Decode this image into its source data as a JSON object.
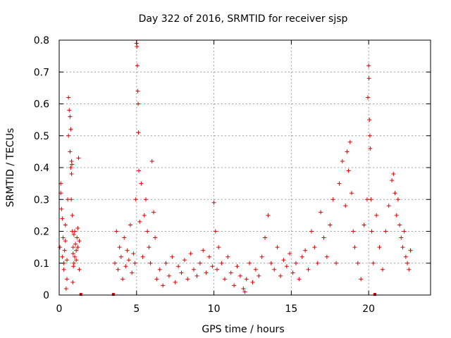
{
  "chart_data": {
    "type": "scatter",
    "title": "Day 322 of 2016, SRMTID for receiver sjsp",
    "xlabel": "GPS time / hours",
    "ylabel": "SRMTID / TECUs",
    "xlim": [
      0,
      24
    ],
    "ylim": [
      0,
      0.8
    ],
    "xticks": [
      0,
      5,
      10,
      15,
      20
    ],
    "xtick_labels": [
      "0",
      "5",
      "10",
      "15",
      "20"
    ],
    "yticks": [
      0,
      0.1,
      0.2,
      0.3,
      0.4,
      0.5,
      0.6,
      0.7,
      0.8
    ],
    "ytick_labels": [
      "0",
      "0.1",
      "0.2",
      "0.3",
      "0.4",
      "0.5",
      "0.6",
      "0.7",
      "0.8"
    ],
    "grid": true,
    "marker": "plus",
    "marker_color": "#e00000",
    "series": [
      {
        "name": "SRMTID",
        "x": [
          0.05,
          0.1,
          0.15,
          0.2,
          0.25,
          0.3,
          0.35,
          0.4,
          0.45,
          0.5,
          0.55,
          0.6,
          0.65,
          0.7,
          0.75,
          0.8,
          0.85,
          0.9,
          0.95,
          1.0,
          1.05,
          1.1,
          1.15,
          1.2,
          1.25,
          1.3,
          0.1,
          0.2,
          0.3,
          0.4,
          0.5,
          0.6,
          0.7,
          0.75,
          0.78,
          0.8,
          0.82,
          0.85,
          0.88,
          0.9,
          0.92,
          0.95,
          1.0,
          1.1,
          1.2,
          1.3,
          3.6,
          3.7,
          3.8,
          3.9,
          4.0,
          4.1,
          4.2,
          4.3,
          4.4,
          4.5,
          4.6,
          4.7,
          4.8,
          4.9,
          4.95,
          5.0,
          5.02,
          5.05,
          5.08,
          5.1,
          5.12,
          5.15,
          5.2,
          5.3,
          5.4,
          5.5,
          5.6,
          5.7,
          5.8,
          5.9,
          6.0,
          6.1,
          6.2,
          6.3,
          6.5,
          6.7,
          6.9,
          7.1,
          7.3,
          7.5,
          7.7,
          7.9,
          8.1,
          8.3,
          8.5,
          8.7,
          8.9,
          9.1,
          9.3,
          9.5,
          9.7,
          9.9,
          10.0,
          10.1,
          10.2,
          10.3,
          10.5,
          10.7,
          10.9,
          11.1,
          11.3,
          11.5,
          11.7,
          11.9,
          12.0,
          12.1,
          12.3,
          12.5,
          12.7,
          12.9,
          13.1,
          13.3,
          13.5,
          13.7,
          13.9,
          14.1,
          14.3,
          14.5,
          14.7,
          14.9,
          15.1,
          15.3,
          15.5,
          15.7,
          15.9,
          16.1,
          16.3,
          16.5,
          16.7,
          16.9,
          17.1,
          17.3,
          17.5,
          17.7,
          17.9,
          18.1,
          18.3,
          18.5,
          18.6,
          18.7,
          18.8,
          18.9,
          19.0,
          19.1,
          19.3,
          19.5,
          19.7,
          19.9,
          19.95,
          20.0,
          20.02,
          20.05,
          20.08,
          20.1,
          20.15,
          20.2,
          20.3,
          20.5,
          20.7,
          20.9,
          21.1,
          21.3,
          21.5,
          21.6,
          21.7,
          21.8,
          21.9,
          22.0,
          22.1,
          22.2,
          22.3,
          22.4,
          22.5,
          22.6,
          22.7,
          1.4,
          3.5,
          20.4
        ],
        "y": [
          0.15,
          0.32,
          0.27,
          0.12,
          0.18,
          0.08,
          0.14,
          0.22,
          0.02,
          0.11,
          0.3,
          0.62,
          0.58,
          0.45,
          0.4,
          0.38,
          0.2,
          0.15,
          0.1,
          0.12,
          0.16,
          0.14,
          0.18,
          0.21,
          0.43,
          0.08,
          0.35,
          0.24,
          0.1,
          0.17,
          0.05,
          0.5,
          0.56,
          0.52,
          0.3,
          0.42,
          0.41,
          0.25,
          0.04,
          0.13,
          0.09,
          0.19,
          0.2,
          0.11,
          0.15,
          0.17,
          0.1,
          0.2,
          0.08,
          0.15,
          0.12,
          0.05,
          0.18,
          0.09,
          0.14,
          0.11,
          0.22,
          0.07,
          0.13,
          0.1,
          0.3,
          0.79,
          0.78,
          0.72,
          0.64,
          0.6,
          0.51,
          0.39,
          0.23,
          0.35,
          0.12,
          0.25,
          0.3,
          0.2,
          0.15,
          0.1,
          0.42,
          0.26,
          0.18,
          0.05,
          0.08,
          0.03,
          0.1,
          0.06,
          0.12,
          0.04,
          0.09,
          0.07,
          0.11,
          0.05,
          0.13,
          0.08,
          0.06,
          0.1,
          0.14,
          0.07,
          0.12,
          0.09,
          0.29,
          0.2,
          0.08,
          0.15,
          0.1,
          0.05,
          0.12,
          0.07,
          0.03,
          0.09,
          0.06,
          0.02,
          0.01,
          0.05,
          0.1,
          0.04,
          0.08,
          0.06,
          0.12,
          0.18,
          0.25,
          0.1,
          0.08,
          0.15,
          0.06,
          0.11,
          0.09,
          0.13,
          0.07,
          0.1,
          0.05,
          0.12,
          0.14,
          0.08,
          0.2,
          0.15,
          0.1,
          0.26,
          0.18,
          0.12,
          0.22,
          0.3,
          0.1,
          0.35,
          0.42,
          0.28,
          0.45,
          0.39,
          0.48,
          0.32,
          0.2,
          0.15,
          0.1,
          0.05,
          0.22,
          0.3,
          0.62,
          0.72,
          0.68,
          0.55,
          0.5,
          0.46,
          0.3,
          0.2,
          0.1,
          0.25,
          0.15,
          0.08,
          0.2,
          0.28,
          0.36,
          0.38,
          0.32,
          0.25,
          0.3,
          0.22,
          0.18,
          0.15,
          0.2,
          0.12,
          0.1,
          0.08,
          0.14,
          0.0,
          0.0,
          0.0
        ],
        "marker_overrides": {
          "181": "square",
          "182": "square",
          "183": "square"
        }
      }
    ]
  }
}
